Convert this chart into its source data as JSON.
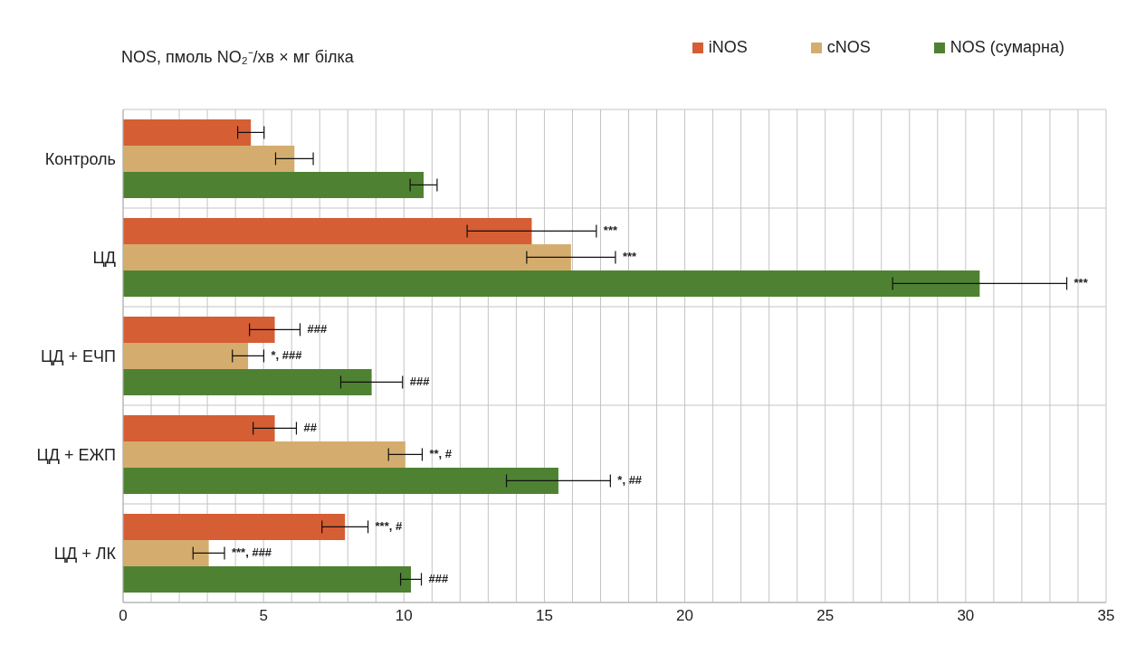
{
  "chart_data": {
    "type": "bar",
    "orientation": "horizontal",
    "title": "NOS, пмоль NO₂⁻/хв × мг білка",
    "categories": [
      "Контроль",
      "ЦД",
      "ЦД + ЕЧП",
      "ЦД + ЕЖП",
      "ЦД + ЛК"
    ],
    "series": [
      {
        "name": "iNOS",
        "color": "#d55e34",
        "values": [
          4.55,
          14.55,
          5.4,
          5.4,
          7.9
        ],
        "errors": [
          0.47,
          2.3,
          0.9,
          0.77,
          0.82
        ]
      },
      {
        "name": "cNOS",
        "color": "#d4ad6e",
        "values": [
          6.1,
          15.95,
          4.45,
          10.05,
          3.05
        ],
        "errors": [
          0.67,
          1.58,
          0.56,
          0.6,
          0.56
        ]
      },
      {
        "name": "NOS (сумарна)",
        "color": "#4e8232",
        "values": [
          10.7,
          30.5,
          8.85,
          15.5,
          10.25
        ],
        "errors": [
          0.48,
          3.1,
          1.1,
          1.85,
          0.37
        ]
      }
    ],
    "xlim": [
      0,
      35
    ],
    "xticks": [
      0,
      {
        "value": 1,
        "label": null
      },
      {
        "value": 2,
        "label": null
      },
      {
        "value": 3,
        "label": null
      },
      {
        "value": 4,
        "label": null
      },
      5,
      {
        "value": 6,
        "label": null
      },
      {
        "value": 7,
        "label": null
      },
      {
        "value": 8,
        "label": null
      },
      {
        "value": 9,
        "label": null
      },
      10,
      {
        "value": 11,
        "label": null
      },
      {
        "value": 12,
        "label": null
      },
      {
        "value": 13,
        "label": null
      },
      {
        "value": 14,
        "label": null
      },
      15,
      {
        "value": 16,
        "label": null
      },
      {
        "value": 17,
        "label": null
      },
      {
        "value": 18,
        "label": null
      },
      {
        "value": 19,
        "label": null
      },
      20,
      {
        "value": 21,
        "label": null
      },
      {
        "value": 22,
        "label": null
      },
      {
        "value": 23,
        "label": null
      },
      {
        "value": 24,
        "label": null
      },
      25,
      {
        "value": 26,
        "label": null
      },
      {
        "value": 27,
        "label": null
      },
      {
        "value": 28,
        "label": null
      },
      {
        "value": 29,
        "label": null
      },
      30,
      {
        "value": 31,
        "label": null
      },
      {
        "value": 32,
        "label": null
      },
      {
        "value": 33,
        "label": null
      },
      {
        "value": 34,
        "label": null
      },
      35
    ],
    "grid": true,
    "legend": "top right",
    "annotations": [
      "***",
      "***",
      "***",
      "###",
      "*, ###",
      "###",
      "##",
      "**, #",
      "*, ##",
      "***, #",
      "***, ###",
      "###"
    ]
  }
}
